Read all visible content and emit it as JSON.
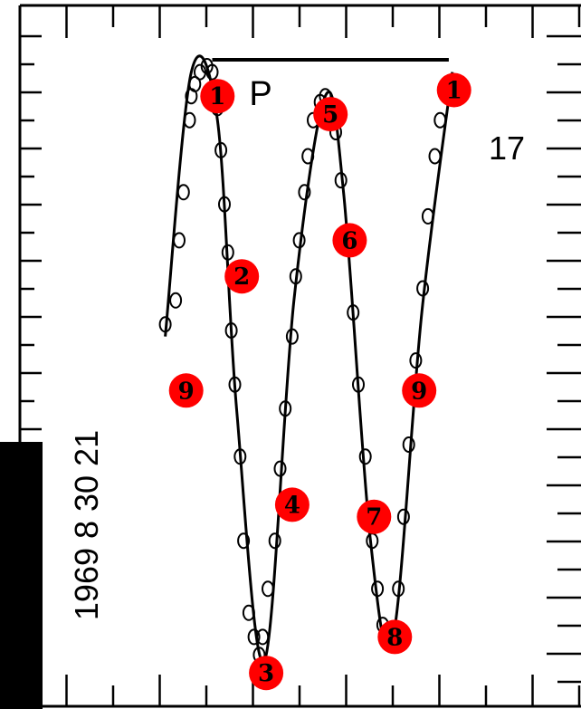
{
  "chart_data": {
    "type": "line",
    "title": "",
    "xlabel": "",
    "ylabel": "",
    "date_label": "1969 8 30 21",
    "right_tick_label": "17",
    "period_label": "P",
    "x": [
      0,
      12,
      16,
      21,
      28,
      30,
      34,
      40,
      48,
      54,
      60,
      64,
      68,
      72,
      76,
      80,
      86,
      90,
      96,
      102,
      108,
      112,
      118,
      126,
      132,
      138,
      146,
      150,
      154,
      160,
      164,
      170,
      178,
      184,
      190,
      196,
      202,
      208,
      216,
      222,
      230,
      238,
      244,
      250,
      256,
      262,
      268,
      274,
      280,
      288,
      296,
      302,
      310,
      316,
      324,
      328
    ],
    "y": [
      44,
      40,
      30,
      22,
      10,
      6,
      4,
      2,
      1,
      2,
      8,
      15,
      24,
      32,
      45,
      54,
      66,
      80,
      92,
      96,
      99,
      96,
      88,
      80,
      68,
      58,
      46,
      36,
      30,
      22,
      16,
      10,
      7,
      6,
      8,
      12,
      20,
      30,
      42,
      54,
      66,
      80,
      88,
      94,
      96,
      95,
      88,
      76,
      64,
      50,
      38,
      26,
      16,
      10,
      4,
      5
    ],
    "curve_x": [
      0,
      30,
      60,
      82,
      114,
      148,
      184,
      205,
      236,
      262,
      295,
      330
    ],
    "curve_y": [
      46,
      2,
      10,
      58,
      100,
      40,
      6,
      22,
      80,
      96,
      42,
      2
    ],
    "markers": [
      {
        "label": "1",
        "x": 60,
        "y": 6
      },
      {
        "label": "2",
        "x": 88,
        "y": 36
      },
      {
        "label": "3",
        "x": 116,
        "y": 102
      },
      {
        "label": "4",
        "x": 146,
        "y": 74
      },
      {
        "label": "5",
        "x": 190,
        "y": 9
      },
      {
        "label": "6",
        "x": 212,
        "y": 30
      },
      {
        "label": "7",
        "x": 240,
        "y": 76
      },
      {
        "label": "8",
        "x": 264,
        "y": 96
      },
      {
        "label": "9",
        "x": 24,
        "y": 55
      },
      {
        "label": "9",
        "x": 292,
        "y": 55
      },
      {
        "label": "1",
        "x": 332,
        "y": 5
      }
    ],
    "xlim": [
      -190,
      478
    ],
    "ylim": [
      -10,
      108
    ],
    "period_start_x": 54,
    "period_end_x": 326,
    "grid": false,
    "colors": {
      "marker_fill": "#ff0000",
      "line": "#000000",
      "points": "#000000"
    }
  }
}
